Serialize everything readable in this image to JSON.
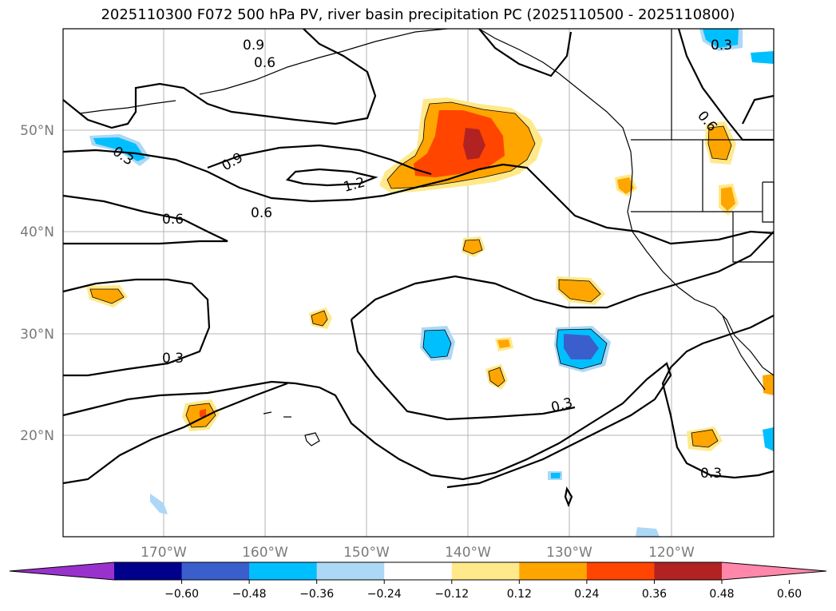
{
  "title": "2025110300 F072 500 hPa PV, river basin precipitation PC (2025110500 - 2025110800)",
  "lat_labels": [
    "50°N",
    "40°N",
    "30°N",
    "20°N"
  ],
  "lon_labels": [
    "170°W",
    "160°W",
    "150°W",
    "140°W",
    "130°W",
    "120°W"
  ],
  "colorbar": {
    "tick_labels": [
      "−0.60",
      "−0.48",
      "−0.36",
      "−0.24",
      "−0.12",
      "0.12",
      "0.24",
      "0.36",
      "0.48",
      "0.60"
    ],
    "colors": [
      "#9932cc",
      "#00008b",
      "#3a5fcd",
      "#00bfff",
      "#add8f5",
      "#ffffff",
      "#ffe98a",
      "#ffa500",
      "#ff4500",
      "#b22222",
      "#ff88aa"
    ]
  },
  "contour_labels": {
    "pv_0_9_top": "0.9",
    "pv_0_6_top": "0.6",
    "pv_0_9_mid": "0.9",
    "pv_1_2": "1.2",
    "pv_0_6_left": "0.6",
    "pv_0_6_mid": "0.6",
    "pv_0_3_left": "0.3",
    "pv_0_3_center": "0.3",
    "pv_0_3_right": "0.3",
    "pv_neg_0_3_left": "0.3",
    "pv_neg_0_3_top_right": "0.3",
    "pv_0_6_right": "0.6"
  }
}
